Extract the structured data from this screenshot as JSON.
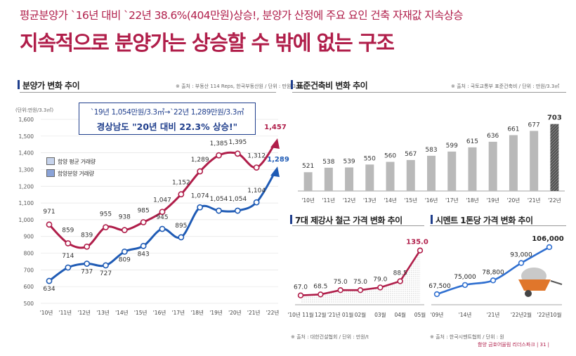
{
  "header": {
    "subtitle": "평균분양가 `16년 대비 `22년 38.6%(404만원)상승!, 분양가 산정에 주요 요인 건축 자재값 지속상승",
    "title": "지속적으로 분양가는 상승할 수 밖에 없는 구조"
  },
  "footer": "함양 금호어울림 리더스파크 | 31 |",
  "colors": {
    "accent": "#b01e4a",
    "navy": "#1f3e8c",
    "blue": "#2f6fd0",
    "gray": "#b9b9b9"
  },
  "charts": {
    "price": {
      "section_title": "분양가 변화 추이",
      "source": "※ 출처 : 부동산 114 Reps, 한국부동산원 / 단위 : 만원/3.3㎡",
      "unit": "(단위:만원/3.3㎡)",
      "callout_line1": "`19년 1,054만원/3.3㎡→`22년 1,289만원/3.3㎡",
      "callout_line2": "경상남도 \"20년 대비 22.3% 상승!\"",
      "legend": [
        "함양 평균 거래량",
        "함양분양 거래량"
      ]
    },
    "construction": {
      "section_title": "표준건축비 변화 추이",
      "source": "※ 출처 : 국토교통부 표준건축비 / 단위 : 만원/3.3㎡"
    },
    "rebar": {
      "section_title": "7대 제강사 철근 가격 변화 추이",
      "source": "※ 출처 : 대한건설협회 / 단위 : 만원/t"
    },
    "cement": {
      "section_title": "시멘트 1톤당 가격 변화 추이",
      "source": "※ 출처 : 한국시멘트협회 / 단위 : 원"
    }
  },
  "chart_data": [
    {
      "type": "line",
      "categories": [
        "'10년",
        "'11년",
        "'12년",
        "'13년",
        "'14년",
        "'15년",
        "'16년",
        "'17년",
        "'18년",
        "'19년",
        "'20년",
        "'21년",
        "'22년"
      ],
      "series": [
        {
          "name": "함양 평균 거래량",
          "values": [
            971,
            859,
            839,
            955,
            938,
            985,
            1047,
            1152,
            1289,
            1385,
            1395,
            1312,
            1457
          ],
          "color": "#b01e4a"
        },
        {
          "name": "함양분양 거래량",
          "values": [
            634,
            714,
            737,
            727,
            809,
            843,
            945,
            895,
            1074,
            1054,
            1054,
            1104,
            1289
          ],
          "color": "#1f5bb5"
        }
      ],
      "ylim": [
        500,
        1600
      ],
      "yticks": [
        "1,600",
        "1,500",
        "1,400",
        "1,300",
        "1,200",
        "1,100",
        "1,000",
        "900",
        "800",
        "700",
        "600",
        "500"
      ],
      "value_labels": [
        "971",
        "859",
        "839",
        "955",
        "938",
        "985",
        "1,047",
        "1,152",
        "1,289",
        "1,385",
        "1,395",
        "1,312",
        "1,457",
        "634",
        "714",
        "737",
        "727",
        "809",
        "843",
        "945",
        "895",
        "1,074",
        "1,054",
        "1,054",
        "1,104",
        "1,289"
      ],
      "grid": true
    },
    {
      "type": "bar",
      "categories": [
        "'10년",
        "'11년",
        "'12년",
        "'13년",
        "'14년",
        "'15년",
        "'16년",
        "'17년",
        "'18년",
        "'19년",
        "'20년",
        "'21년",
        "'22년"
      ],
      "values": [
        521,
        538,
        539,
        550,
        560,
        567,
        583,
        599,
        615,
        636,
        661,
        677,
        703
      ],
      "ylim": [
        450,
        710
      ],
      "grid": false
    },
    {
      "type": "area",
      "categories": [
        "'10년 11월",
        "12월",
        "'21년 01월",
        "02월",
        "03월",
        "04월",
        "05월"
      ],
      "values": [
        67.0,
        68.5,
        75.0,
        75.0,
        79.0,
        88.5,
        135.0
      ],
      "value_labels": [
        "67.0",
        "68.5",
        "75.0",
        "75.0",
        "79.0",
        "88.5",
        "135.0"
      ],
      "ylim": [
        55,
        140
      ],
      "grid": false
    },
    {
      "type": "line",
      "categories": [
        "'09년",
        "'14년",
        "'21년",
        "'22년2월",
        "'22년10월"
      ],
      "values": [
        67500,
        75000,
        78800,
        93000,
        106000
      ],
      "value_labels": [
        "67,500",
        "75,000",
        "78,800",
        "93,000",
        "106,000"
      ],
      "ylim": [
        60000,
        110000
      ],
      "grid": false
    }
  ]
}
